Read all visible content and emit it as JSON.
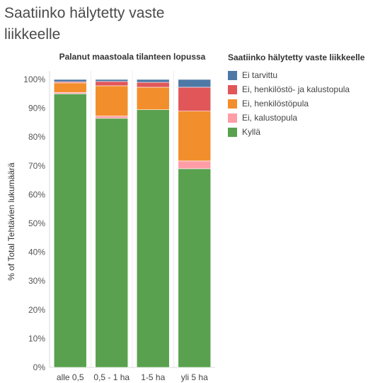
{
  "page": {
    "title": "Saatiinko hälytetty vaste liikkeelle"
  },
  "chart_data": {
    "type": "bar",
    "stacked": true,
    "title": "Palanut maastoala tilanteen lopussa",
    "ylabel": "% of Total Tehtävien lukumäärä",
    "xlabel": "",
    "ylim": [
      0,
      100
    ],
    "yticks": [
      0,
      10,
      20,
      30,
      40,
      50,
      60,
      70,
      80,
      90,
      100
    ],
    "y_tick_suffix": "%",
    "categories": [
      "alle 0,5",
      "0,5 - 1 ha",
      "1-5 ha",
      "yli 5 ha"
    ],
    "legend_title": "Saatiinko hälytetty vaste liikkeelle",
    "legend_position": "right",
    "grid": false,
    "series": [
      {
        "name": "Kyllä",
        "color": "#59a14f",
        "values": [
          95.0,
          86.5,
          89.5,
          69.0
        ]
      },
      {
        "name": "Ei, kalustopula",
        "color": "#ff9da7",
        "values": [
          0.5,
          0.8,
          0.0,
          2.7
        ]
      },
      {
        "name": "Ei, henkilöstöpula",
        "color": "#f28e2b",
        "values": [
          3.3,
          10.5,
          7.8,
          17.3
        ]
      },
      {
        "name": "Ei, henkilöstö- ja kalustopula",
        "color": "#e15759",
        "values": [
          0.4,
          1.5,
          1.7,
          8.3
        ]
      },
      {
        "name": "Ei tarvittu",
        "color": "#4e79a7",
        "values": [
          0.8,
          0.7,
          1.0,
          2.7
        ]
      }
    ],
    "legend_order": [
      "Ei tarvittu",
      "Ei, henkilöstö- ja kalustopula",
      "Ei, henkilöstöpula",
      "Ei, kalustopula",
      "Kyllä"
    ]
  }
}
